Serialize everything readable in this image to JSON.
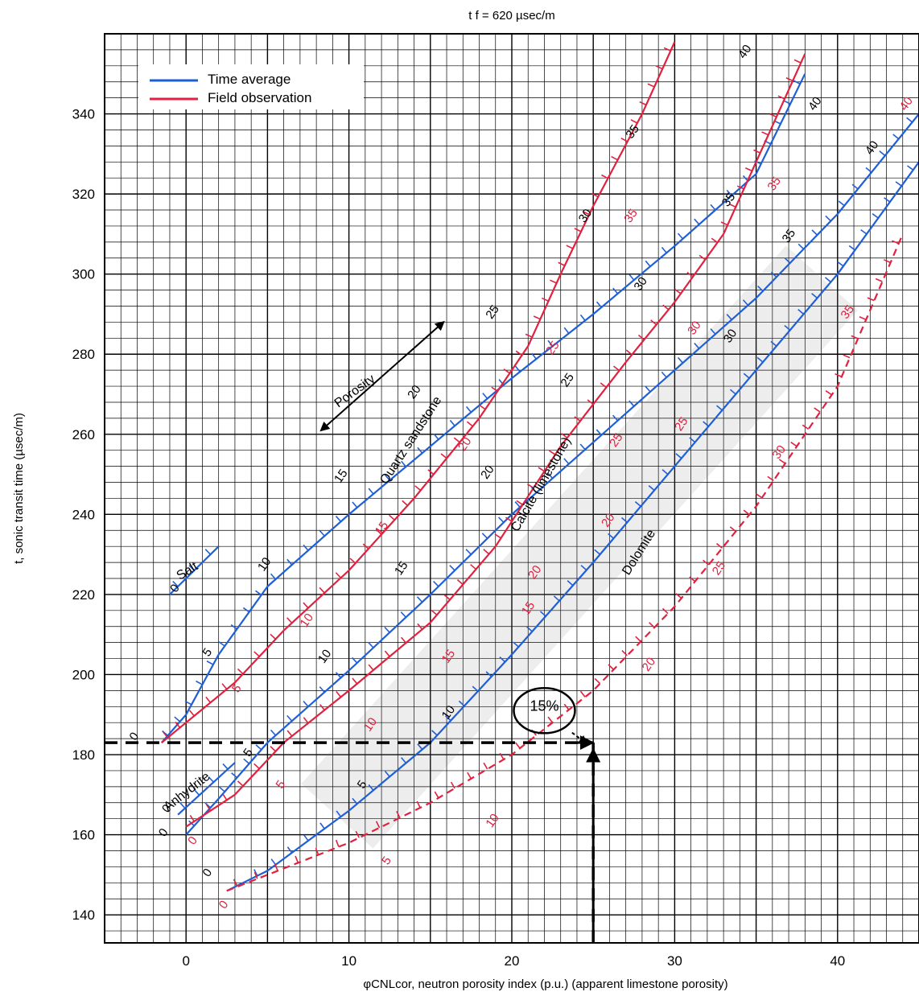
{
  "chart_data": {
    "type": "line",
    "title": "t f = 620 µsec/m",
    "xlabel": "φCNLcor, neutron porosity index (p.u.) (apparent limestone porosity)",
    "ylabel": "t, sonic transit time (µsec/m)",
    "xlim": [
      -5,
      45
    ],
    "ylim": [
      133,
      360
    ],
    "xticks": [
      0,
      10,
      20,
      30,
      40
    ],
    "yticks": [
      140,
      160,
      180,
      200,
      220,
      240,
      260,
      280,
      300,
      320,
      340
    ],
    "grid": true,
    "legend": {
      "placement": "top-left",
      "items": [
        {
          "label": "Time average",
          "color": "#1f5fd6"
        },
        {
          "label": "Field observation",
          "color": "#e0213f"
        }
      ]
    },
    "colors": {
      "time_average": "#1f5fd6",
      "field_observation": "#e0213f",
      "grid": "#000000",
      "marker": "#000000"
    },
    "series": [
      {
        "name": "Quartz sandstone",
        "kind": "time_average",
        "x": [
          -1.5,
          0,
          2,
          5,
          10,
          15,
          20,
          25,
          30,
          35,
          38
        ],
        "y": [
          183,
          190,
          205,
          222,
          240,
          257,
          274,
          290,
          307,
          325,
          350
        ]
      },
      {
        "kind": "field_observation",
        "x": [
          -1.5,
          0,
          3,
          6,
          10,
          14,
          18,
          21,
          23,
          25,
          28,
          30
        ],
        "y": [
          183,
          188,
          198,
          211,
          226,
          244,
          264,
          282,
          300,
          317,
          340,
          358
        ]
      },
      {
        "name": "Calcite (limestone)",
        "kind": "time_average",
        "x": [
          0,
          2,
          5,
          10,
          15,
          20,
          25,
          30,
          35,
          40,
          45
        ],
        "y": [
          160,
          169,
          183,
          201,
          220,
          240,
          258,
          276,
          294,
          315,
          340
        ]
      },
      {
        "kind": "field_observation",
        "x": [
          0,
          3,
          6,
          10,
          15,
          19,
          23,
          27,
          30,
          33,
          35,
          38
        ],
        "y": [
          162,
          170,
          183,
          196,
          213,
          232,
          257,
          278,
          293,
          310,
          328,
          355
        ]
      },
      {
        "name": "Dolomite",
        "kind": "time_average",
        "x": [
          2.5,
          5,
          10,
          15,
          20,
          25,
          30,
          35,
          40,
          45
        ],
        "y": [
          146,
          151,
          166,
          183,
          205,
          228,
          252,
          276,
          300,
          328
        ]
      },
      {
        "kind": "field_observation",
        "dashed": true,
        "x": [
          2.5,
          5,
          10,
          15,
          20,
          25,
          30,
          35,
          40,
          44
        ],
        "y": [
          146,
          150,
          158,
          168,
          180,
          196,
          217,
          242,
          272,
          310
        ]
      },
      {
        "name": "Salt",
        "kind": "time_average",
        "x": [
          -1,
          2
        ],
        "y": [
          220,
          232
        ]
      },
      {
        "name": "Anhydrite",
        "kind": "time_average",
        "x": [
          -0.5,
          3
        ],
        "y": [
          165,
          178
        ]
      },
      {
        "kind": "reading_line",
        "dashed": true,
        "x": [
          -5,
          25
        ],
        "y": [
          183,
          183
        ]
      },
      {
        "kind": "reading_line",
        "dashed": true,
        "x": [
          25,
          25
        ],
        "y": [
          133,
          183
        ]
      }
    ],
    "annotations": [
      {
        "text": "Salt",
        "x": 0.2,
        "y": 225
      },
      {
        "text": "Anhydrite",
        "x": 0.2,
        "y": 170
      },
      {
        "text": "Quartz sandstone",
        "x": 14,
        "y": 258
      },
      {
        "text": "Calcite (limestone)",
        "x": 22,
        "y": 247
      },
      {
        "text": "Dolomite",
        "x": 28,
        "y": 230
      },
      {
        "text": "Porosity",
        "x": 10.5,
        "y": 270
      },
      {
        "text": "15%",
        "x": 22,
        "y": 191
      },
      {
        "text": "0",
        "x": -3,
        "y": 184
      },
      {
        "text": "0",
        "x": -0.5,
        "y": 221
      },
      {
        "text": "0",
        "x": -1,
        "y": 166
      },
      {
        "text": "0",
        "x": -1.2,
        "y": 160
      },
      {
        "text": "0",
        "x": 1.5,
        "y": 150
      },
      {
        "text": "0",
        "x": 2.5,
        "y": 142
      },
      {
        "text": "0",
        "x": 0.6,
        "y": 158
      },
      {
        "text": "5",
        "x": 1.5,
        "y": 205
      },
      {
        "text": "5",
        "x": 3.3,
        "y": 196
      },
      {
        "text": "5",
        "x": 4,
        "y": 180
      },
      {
        "text": "5",
        "x": 6,
        "y": 172
      },
      {
        "text": "5",
        "x": 11,
        "y": 172
      },
      {
        "text": "5",
        "x": 12.5,
        "y": 153
      },
      {
        "text": "10",
        "x": 5,
        "y": 227
      },
      {
        "text": "10",
        "x": 7.6,
        "y": 213
      },
      {
        "text": "10",
        "x": 8.7,
        "y": 204
      },
      {
        "text": "10",
        "x": 11.5,
        "y": 187
      },
      {
        "text": "10",
        "x": 16.3,
        "y": 190
      },
      {
        "text": "10",
        "x": 19,
        "y": 163
      },
      {
        "text": "15",
        "x": 9.7,
        "y": 249
      },
      {
        "text": "15",
        "x": 12.2,
        "y": 236
      },
      {
        "text": "15",
        "x": 13.4,
        "y": 226
      },
      {
        "text": "15",
        "x": 16.3,
        "y": 204
      },
      {
        "text": "15",
        "x": 21.2,
        "y": 216
      },
      {
        "text": "20",
        "x": 14.2,
        "y": 270
      },
      {
        "text": "20",
        "x": 17.3,
        "y": 257
      },
      {
        "text": "20",
        "x": 18.7,
        "y": 250
      },
      {
        "text": "20",
        "x": 21.6,
        "y": 225
      },
      {
        "text": "20",
        "x": 26.1,
        "y": 238
      },
      {
        "text": "20",
        "x": 28.6,
        "y": 202
      },
      {
        "text": "25",
        "x": 19,
        "y": 290
      },
      {
        "text": "25",
        "x": 22.7,
        "y": 281
      },
      {
        "text": "25",
        "x": 23.6,
        "y": 273
      },
      {
        "text": "25",
        "x": 26.6,
        "y": 258
      },
      {
        "text": "25",
        "x": 30.6,
        "y": 262
      },
      {
        "text": "25",
        "x": 32.9,
        "y": 226
      },
      {
        "text": "30",
        "x": 24.7,
        "y": 314
      },
      {
        "text": "30",
        "x": 28.1,
        "y": 297
      },
      {
        "text": "30",
        "x": 31.4,
        "y": 286
      },
      {
        "text": "30",
        "x": 33.6,
        "y": 284
      },
      {
        "text": "30",
        "x": 36.6,
        "y": 255
      },
      {
        "text": "35",
        "x": 27.6,
        "y": 335
      },
      {
        "text": "35",
        "x": 27.5,
        "y": 314
      },
      {
        "text": "35",
        "x": 33.5,
        "y": 318
      },
      {
        "text": "35",
        "x": 36.3,
        "y": 322
      },
      {
        "text": "35",
        "x": 37.2,
        "y": 309
      },
      {
        "text": "35",
        "x": 40.8,
        "y": 290
      },
      {
        "text": "40",
        "x": 34.5,
        "y": 355
      },
      {
        "text": "40",
        "x": 38.8,
        "y": 342
      },
      {
        "text": "40",
        "x": 42.3,
        "y": 331
      },
      {
        "text": "40",
        "x": 44.4,
        "y": 342
      }
    ]
  }
}
